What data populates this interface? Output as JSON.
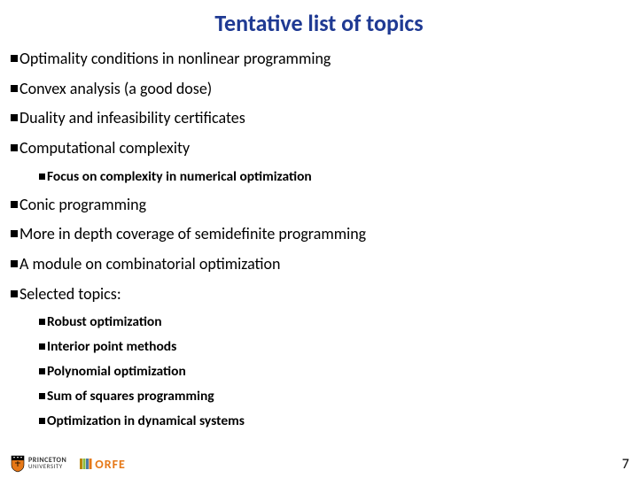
{
  "title": "Tentative list of topics",
  "items": [
    {
      "text": "Optimality conditions in nonlinear programming",
      "level": 0
    },
    {
      "text": "Convex analysis (a good dose)",
      "level": 0
    },
    {
      "text": "Duality and infeasibility certificates",
      "level": 0
    },
    {
      "text": "Computational complexity",
      "level": 0
    },
    {
      "text": "Focus on complexity in numerical optimization",
      "level": 1
    },
    {
      "text": "Conic programming",
      "level": 0
    },
    {
      "text": "More in depth coverage of semidefinite programming",
      "level": 0
    },
    {
      "text": "A module on combinatorial optimization",
      "level": 0
    },
    {
      "text": "Selected topics:",
      "level": 0
    },
    {
      "text": "Robust optimization",
      "level": 2
    },
    {
      "text": "Interior point methods",
      "level": 2
    },
    {
      "text": "Polynomial optimization",
      "level": 2
    },
    {
      "text": "Sum of squares programming",
      "level": 2
    },
    {
      "text": "Optimization in dynamical systems",
      "level": 2
    }
  ],
  "footer": {
    "princeton_top": "PRINCETON",
    "princeton_bottom": "UNIVERSITY",
    "orfe": "ORFE",
    "page": "7"
  },
  "colors": {
    "title": "#1f3a93",
    "text": "#000000",
    "bullet": "#000000",
    "orfe": "#e67817",
    "background": "#ffffff"
  },
  "typography": {
    "title_fontsize": 26,
    "body_fontsize": 18,
    "sub_fontsize": 15.5,
    "title_weight": 700
  }
}
